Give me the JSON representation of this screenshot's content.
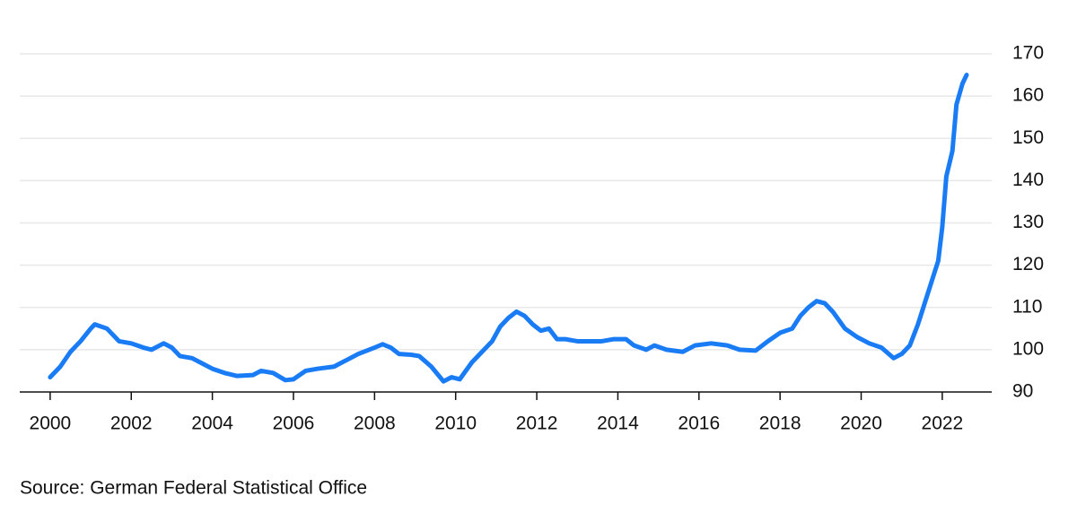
{
  "chart_data": {
    "type": "line",
    "source": "Source: German Federal Statistical Office",
    "x": [
      2000.0,
      2000.25,
      2000.5,
      2000.75,
      2001.0,
      2001.1,
      2001.4,
      2001.7,
      2002.0,
      2002.3,
      2002.5,
      2002.8,
      2003.0,
      2003.2,
      2003.5,
      2003.8,
      2004.0,
      2004.3,
      2004.6,
      2005.0,
      2005.2,
      2005.5,
      2005.8,
      2006.0,
      2006.3,
      2006.6,
      2007.0,
      2007.3,
      2007.6,
      2008.0,
      2008.2,
      2008.4,
      2008.6,
      2008.9,
      2009.1,
      2009.4,
      2009.7,
      2009.9,
      2010.1,
      2010.4,
      2010.7,
      2010.9,
      2011.1,
      2011.3,
      2011.5,
      2011.7,
      2011.9,
      2012.1,
      2012.3,
      2012.5,
      2012.7,
      2013.0,
      2013.3,
      2013.6,
      2013.9,
      2014.2,
      2014.4,
      2014.7,
      2014.9,
      2015.2,
      2015.6,
      2015.9,
      2016.3,
      2016.7,
      2017.0,
      2017.4,
      2017.7,
      2018.0,
      2018.3,
      2018.5,
      2018.7,
      2018.9,
      2019.1,
      2019.3,
      2019.6,
      2019.9,
      2020.2,
      2020.5,
      2020.8,
      2021.0,
      2021.2,
      2021.4,
      2021.6,
      2021.8,
      2021.9,
      2022.0,
      2022.1,
      2022.25,
      2022.35,
      2022.5,
      2022.6
    ],
    "series": [
      {
        "color": "#1a7cf5",
        "values": [
          93.5,
          96,
          99.5,
          102,
          105,
          106,
          105,
          102,
          101.5,
          100.5,
          100,
          101.5,
          100.5,
          98.5,
          98,
          96.5,
          95.5,
          94.5,
          93.8,
          94,
          95,
          94.5,
          92.8,
          93,
          95,
          95.5,
          96,
          97.5,
          99,
          100.5,
          101.3,
          100.5,
          99,
          98.8,
          98.5,
          96,
          92.5,
          93.5,
          93,
          97,
          100,
          102,
          105.5,
          107.5,
          109,
          108,
          106,
          104.5,
          105,
          102.5,
          102.5,
          102,
          102,
          102,
          102.5,
          102.5,
          101,
          100,
          101,
          100,
          99.5,
          101,
          101.5,
          101,
          100,
          99.8,
          102,
          104,
          105,
          108,
          110,
          111.5,
          111,
          109,
          105,
          103,
          101.5,
          100.5,
          98,
          99,
          101,
          106,
          112,
          118,
          121,
          129,
          141,
          147,
          158,
          163,
          165
        ]
      }
    ],
    "xlim": [
      1999.25,
      2023.22
    ],
    "xticks": [
      2000,
      2002,
      2004,
      2006,
      2008,
      2010,
      2012,
      2014,
      2016,
      2018,
      2020,
      2022
    ],
    "ylim": [
      90,
      170
    ],
    "yticks": [
      90,
      100,
      110,
      120,
      130,
      140,
      150,
      160,
      170
    ],
    "grid": true
  }
}
